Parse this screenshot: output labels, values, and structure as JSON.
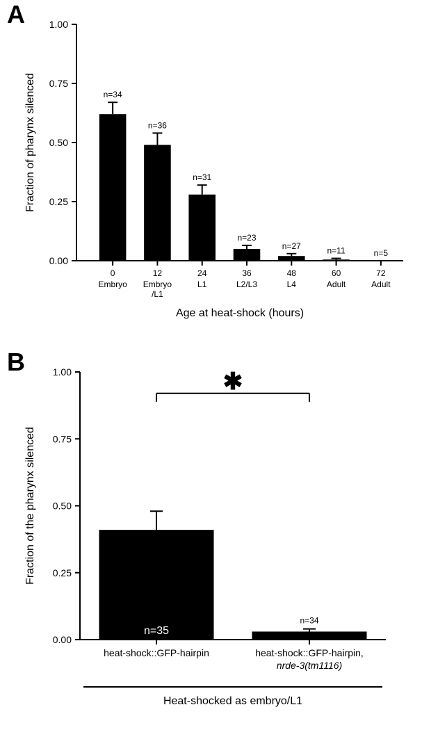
{
  "panelA": {
    "label": "A",
    "type": "bar",
    "yAxisTitle": "Fraction of pharynx silenced",
    "xAxisTitle": "Age at heat-shock (hours)",
    "ylim": [
      0,
      1.0
    ],
    "yticks": [
      0.0,
      0.25,
      0.5,
      0.75,
      1.0
    ],
    "ytick_labels": [
      "0.00",
      "0.25",
      "0.50",
      "0.75",
      "1.00"
    ],
    "bar_color": "#000000",
    "background": "#ffffff",
    "bar_width": 0.6,
    "bars": [
      {
        "xTop": "0",
        "xBottom": "Embryo",
        "value": 0.62,
        "err": 0.05,
        "n": "n=34"
      },
      {
        "xTop": "12",
        "xBottom": "Embryo/L1",
        "value": 0.49,
        "err": 0.05,
        "n": "n=36"
      },
      {
        "xTop": "24",
        "xBottom": "L1",
        "value": 0.28,
        "err": 0.04,
        "n": "n=31"
      },
      {
        "xTop": "36",
        "xBottom": "L2/L3",
        "value": 0.05,
        "err": 0.015,
        "n": "n=23"
      },
      {
        "xTop": "48",
        "xBottom": "L4",
        "value": 0.02,
        "err": 0.01,
        "n": "n=27"
      },
      {
        "xTop": "60",
        "xBottom": "Adult",
        "value": 0.005,
        "err": 0.005,
        "n": "n=11"
      },
      {
        "xTop": "72",
        "xBottom": "Adult",
        "value": 0.0,
        "err": 0.0,
        "n": "n=5"
      }
    ]
  },
  "panelB": {
    "label": "B",
    "type": "bar",
    "yAxisTitle": "Fraction of the pharynx silenced",
    "xAxisTitle": "Heat-shocked as embryo/L1",
    "ylim": [
      0,
      1.0
    ],
    "yticks": [
      0.0,
      0.25,
      0.5,
      0.75,
      1.0
    ],
    "ytick_labels": [
      "0.00",
      "0.25",
      "0.50",
      "0.75",
      "1.00"
    ],
    "bar_color": "#000000",
    "background": "#ffffff",
    "bar_width": 0.75,
    "sig_marker": "✱",
    "bars": [
      {
        "labelLines": [
          "heat-shock::GFP-hairpin"
        ],
        "italicLine": null,
        "value": 0.41,
        "err": 0.07,
        "n": "n=35",
        "nInside": true
      },
      {
        "labelLines": [
          "heat-shock::GFP-hairpin,"
        ],
        "italicLine": "nrde-3(tm1116)",
        "value": 0.03,
        "err": 0.01,
        "n": "n=34",
        "nInside": false
      }
    ]
  }
}
